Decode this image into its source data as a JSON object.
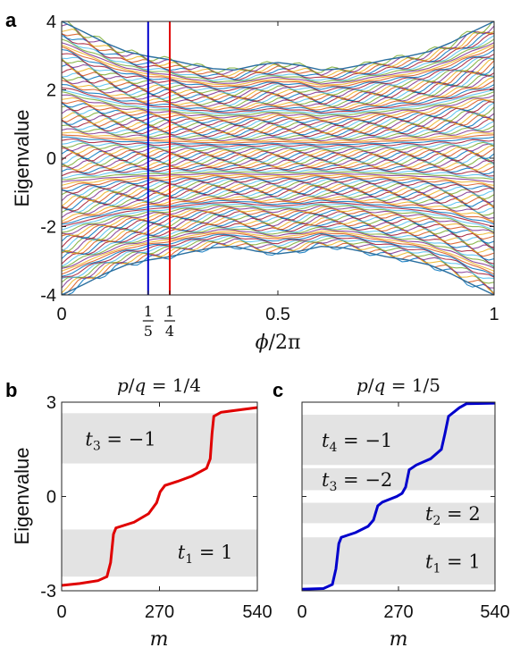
{
  "chart_data": [
    {
      "type": "line",
      "panel_label": "a",
      "xlabel_parts": [
        "ϕ",
        "/2π"
      ],
      "ylabel": "Eigenvalue",
      "xlim": [
        0,
        1
      ],
      "ylim": [
        -4,
        4
      ],
      "y_ticks": [
        "4",
        "2",
        "0",
        "-2",
        "-4"
      ],
      "x_ticks": [
        "0",
        "0.5",
        "1"
      ],
      "x_fraction_ticks": [
        {
          "x": 0.2,
          "num": "1",
          "den": "5"
        },
        {
          "x": 0.25,
          "num": "1",
          "den": "4"
        }
      ],
      "markers": [
        {
          "x": 0.2,
          "color": "#0000cc"
        },
        {
          "x": 0.25,
          "color": "#e00000"
        }
      ],
      "band_edge": [
        [
          0,
          4.0
        ],
        [
          0.05,
          3.7
        ],
        [
          0.1,
          3.38
        ],
        [
          0.15,
          3.12
        ],
        [
          0.2,
          2.98
        ],
        [
          0.25,
          2.88
        ],
        [
          0.3,
          2.74
        ],
        [
          0.35,
          2.62
        ],
        [
          0.4,
          2.58
        ],
        [
          0.45,
          2.72
        ],
        [
          0.5,
          2.8
        ],
        [
          0.55,
          2.72
        ],
        [
          0.6,
          2.58
        ],
        [
          0.65,
          2.62
        ],
        [
          0.7,
          2.74
        ],
        [
          0.75,
          2.88
        ],
        [
          0.8,
          2.98
        ],
        [
          0.85,
          3.12
        ],
        [
          0.9,
          3.38
        ],
        [
          0.95,
          3.7
        ],
        [
          1,
          4.0
        ]
      ],
      "line_colors": [
        "#0072bd",
        "#d95319",
        "#edb120",
        "#7e2f8e",
        "#77ac30",
        "#4dbeee",
        "#a2142f"
      ]
    },
    {
      "type": "line",
      "panel_label": "b",
      "title_parts": [
        "p",
        "/",
        "q",
        " = 1/4"
      ],
      "xlabel": "m",
      "ylabel": "Eigenvalue",
      "xlim": [
        0,
        540
      ],
      "ylim": [
        -3,
        3
      ],
      "x_ticks": [
        "0",
        "270",
        "540"
      ],
      "y_ticks": [
        "3",
        "0",
        "-3"
      ],
      "series_color": "#e00000",
      "gaps": [
        {
          "y0": 1.05,
          "y1": 2.65,
          "label": {
            "t": "t",
            "sub": "3",
            "rest": " = −1"
          },
          "label_x": 65,
          "label_y": 1.85
        },
        {
          "y0": -2.55,
          "y1": -1.05,
          "label": {
            "t": "t",
            "sub": "1",
            "rest": " = 1"
          },
          "label_x": 320,
          "label_y": -1.75
        }
      ],
      "points": [
        [
          0,
          -2.83
        ],
        [
          50,
          -2.77
        ],
        [
          100,
          -2.68
        ],
        [
          125,
          -2.55
        ],
        [
          135,
          -2.1
        ],
        [
          143,
          -1.2
        ],
        [
          150,
          -1.0
        ],
        [
          200,
          -0.82
        ],
        [
          240,
          -0.55
        ],
        [
          262,
          -0.2
        ],
        [
          272,
          0.15
        ],
        [
          285,
          0.35
        ],
        [
          320,
          0.48
        ],
        [
          360,
          0.65
        ],
        [
          400,
          0.9
        ],
        [
          410,
          1.2
        ],
        [
          415,
          2.0
        ],
        [
          420,
          2.55
        ],
        [
          440,
          2.68
        ],
        [
          540,
          2.83
        ]
      ]
    },
    {
      "type": "line",
      "panel_label": "c",
      "title_parts": [
        "p",
        "/",
        "q",
        " = 1/5"
      ],
      "xlabel": "m",
      "xlim": [
        0,
        540
      ],
      "ylim": [
        -3,
        3
      ],
      "x_ticks": [
        "0",
        "270",
        "540"
      ],
      "series_color": "#0000cc",
      "gaps": [
        {
          "y0": 1.0,
          "y1": 2.6,
          "label": {
            "t": "t",
            "sub": "4",
            "rest": " = −1"
          },
          "label_x": 55,
          "label_y": 1.8
        },
        {
          "y0": 0.2,
          "y1": 0.9,
          "label": {
            "t": "t",
            "sub": "3",
            "rest": " = −2"
          },
          "label_x": 55,
          "label_y": 0.55
        },
        {
          "y0": -0.85,
          "y1": -0.2,
          "label": {
            "t": "t",
            "sub": "2",
            "rest": " = 2"
          },
          "label_x": 345,
          "label_y": -0.52
        },
        {
          "y0": -2.8,
          "y1": -1.3,
          "label": {
            "t": "t",
            "sub": "1",
            "rest": " = 1"
          },
          "label_x": 345,
          "label_y": -2.05
        }
      ],
      "points": [
        [
          0,
          -2.95
        ],
        [
          60,
          -2.93
        ],
        [
          85,
          -2.8
        ],
        [
          95,
          -2.3
        ],
        [
          103,
          -1.5
        ],
        [
          110,
          -1.3
        ],
        [
          150,
          -1.15
        ],
        [
          185,
          -0.95
        ],
        [
          200,
          -0.75
        ],
        [
          212,
          -0.3
        ],
        [
          225,
          -0.18
        ],
        [
          265,
          0.0
        ],
        [
          280,
          0.1
        ],
        [
          290,
          0.3
        ],
        [
          300,
          0.85
        ],
        [
          320,
          1.0
        ],
        [
          360,
          1.2
        ],
        [
          390,
          1.5
        ],
        [
          400,
          2.0
        ],
        [
          410,
          2.55
        ],
        [
          440,
          2.82
        ],
        [
          460,
          2.95
        ],
        [
          540,
          2.97
        ]
      ]
    }
  ]
}
